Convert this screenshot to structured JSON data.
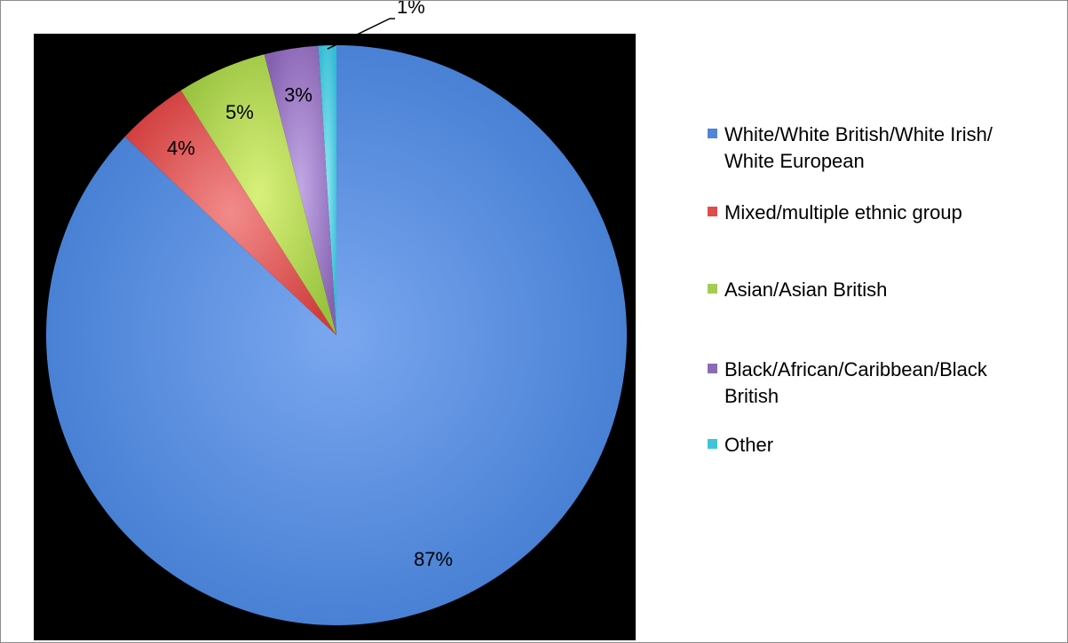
{
  "chart_data": {
    "type": "pie",
    "title": "",
    "start": "12 o'clock",
    "direction": "clockwise",
    "legend_position": "right",
    "slices": [
      {
        "name": "White/White British/White Irish/\nWhite European",
        "value": 87,
        "label": "87%",
        "color": "#4f86d6"
      },
      {
        "name": "Mixed/multiple ethnic group",
        "value": 4,
        "label": "4%",
        "color": "#df4c4c"
      },
      {
        "name": "Asian/Asian British",
        "value": 5,
        "label": "5%",
        "color": "#a3cc52"
      },
      {
        "name": "Black/African/Caribbean/Black\nBritish",
        "value": 3,
        "label": "3%",
        "color": "#8b6bb5"
      },
      {
        "name": "Other",
        "value": 1,
        "label": "1%",
        "color": "#3fc4d9"
      }
    ]
  }
}
